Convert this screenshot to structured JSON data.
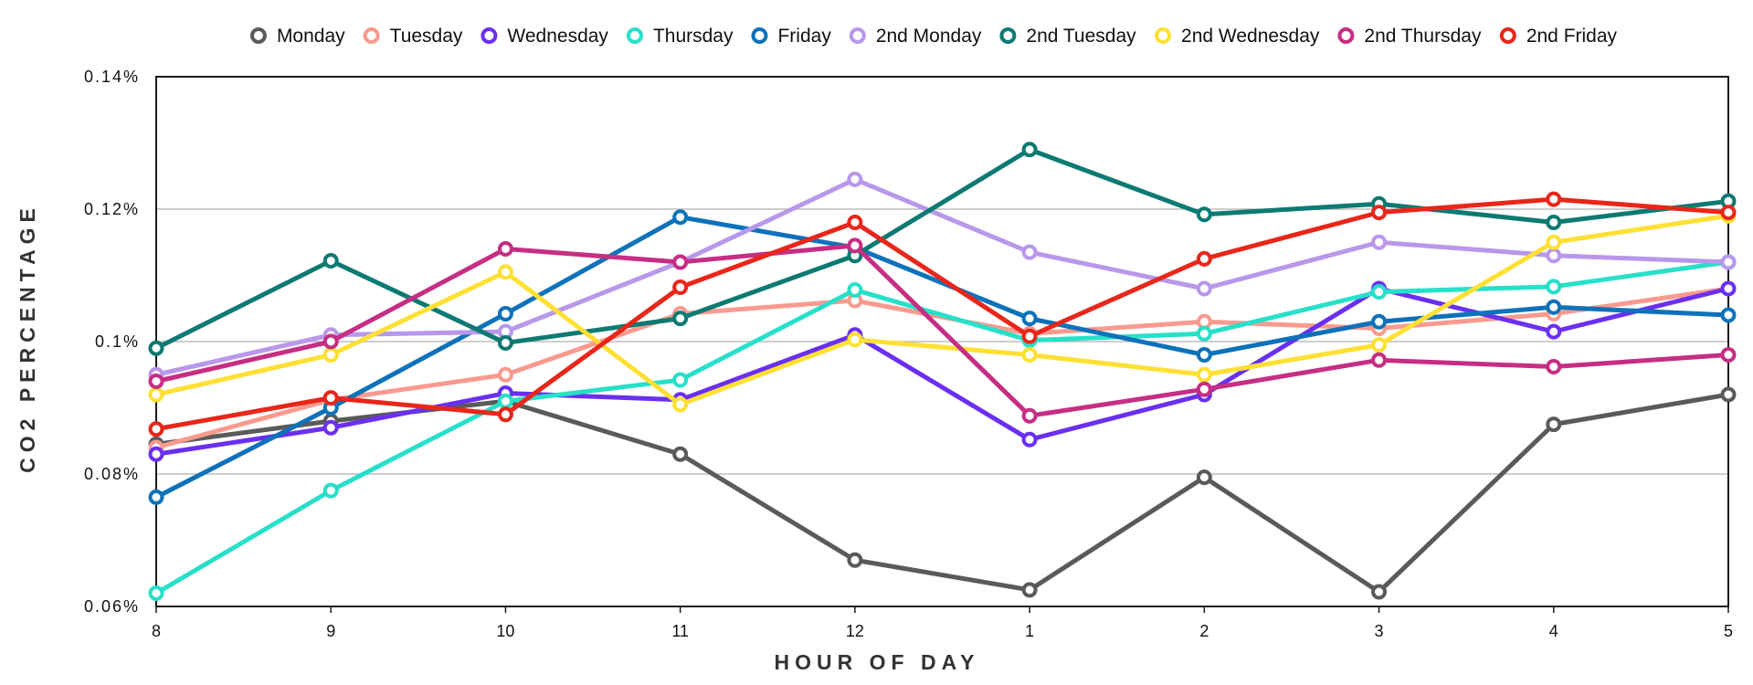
{
  "chart_data": {
    "type": "line",
    "title": "",
    "xlabel": "HOUR OF DAY",
    "ylabel": "CO2 PERCENTAGE",
    "categories": [
      "8",
      "9",
      "10",
      "11",
      "12",
      "1",
      "2",
      "3",
      "4",
      "5"
    ],
    "ylim": [
      0.06,
      0.14
    ],
    "yticks": [
      0.06,
      0.08,
      0.1,
      0.12,
      0.14
    ],
    "ytick_labels": [
      "0.06%",
      "0.08%",
      "0.1%",
      "0.12%",
      "0.14%"
    ],
    "grid": "horizontal",
    "legend_position": "top",
    "series": [
      {
        "name": "Monday",
        "color": "#5a5a5a",
        "values": [
          0.0845,
          0.088,
          0.091,
          0.083,
          0.067,
          0.0625,
          0.0795,
          0.0622,
          0.0875,
          0.092
        ]
      },
      {
        "name": "Tuesday",
        "color": "#f99a8f",
        "values": [
          0.084,
          0.0912,
          0.095,
          0.1042,
          0.1062,
          0.1012,
          0.103,
          0.102,
          0.1042,
          0.108
        ]
      },
      {
        "name": "Wednesday",
        "color": "#6a2ff0",
        "values": [
          0.083,
          0.087,
          0.0922,
          0.0912,
          0.101,
          0.0852,
          0.092,
          0.108,
          0.1015,
          0.108
        ]
      },
      {
        "name": "Thursday",
        "color": "#27e0c9",
        "values": [
          0.062,
          0.0775,
          0.091,
          0.0942,
          0.1078,
          0.1002,
          0.1012,
          0.1075,
          0.1083,
          0.112
        ]
      },
      {
        "name": "Friday",
        "color": "#0e72ba",
        "values": [
          0.0765,
          0.09,
          0.1042,
          0.1188,
          0.1142,
          0.1035,
          0.098,
          0.103,
          0.1052,
          0.104
        ]
      },
      {
        "name": "2nd Monday",
        "color": "#b997ea",
        "values": [
          0.095,
          0.101,
          0.1015,
          0.112,
          0.1245,
          0.1135,
          0.108,
          0.115,
          0.113,
          0.112
        ]
      },
      {
        "name": "2nd Tuesday",
        "color": "#0c7a72",
        "values": [
          0.099,
          0.1122,
          0.0998,
          0.1035,
          0.113,
          0.129,
          0.1192,
          0.1208,
          0.118,
          0.1212
        ]
      },
      {
        "name": "2nd Wednesday",
        "color": "#ffe033",
        "values": [
          0.092,
          0.098,
          0.1105,
          0.0905,
          0.1003,
          0.098,
          0.095,
          0.0995,
          0.115,
          0.119
        ]
      },
      {
        "name": "2nd Thursday",
        "color": "#c62e83",
        "values": [
          0.094,
          0.1,
          0.114,
          0.112,
          0.1145,
          0.0888,
          0.0928,
          0.0972,
          0.0962,
          0.098
        ]
      },
      {
        "name": "2nd Friday",
        "color": "#e8261a",
        "values": [
          0.0868,
          0.0915,
          0.089,
          0.1082,
          0.118,
          0.1008,
          0.1125,
          0.1195,
          0.1215,
          0.1195
        ]
      }
    ]
  }
}
